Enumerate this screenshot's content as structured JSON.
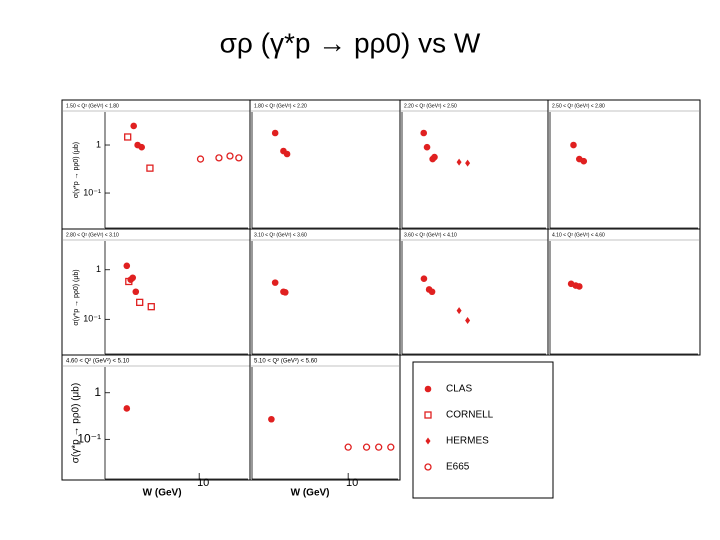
{
  "title": "σρ (γ*p → pρ0) vs W",
  "legend": [
    {
      "name": "CLAS",
      "marker": "filled-circle"
    },
    {
      "name": "CORNELL",
      "marker": "open-square"
    },
    {
      "name": "HERMES",
      "marker": "filled-diamond"
    },
    {
      "name": "E665",
      "marker": "open-circle"
    }
  ],
  "chart_data": [
    {
      "type": "scatter",
      "title": "1.50 < Q² (GeV²) < 1.80",
      "logx": true,
      "logy": true,
      "xlim": [
        1.2,
        30
      ],
      "ylim": [
        0.0187,
        4.87
      ],
      "ylabel": "σ(γ*p → pρ0) (μb)",
      "yticks": [
        1,
        {
          "value": 0.1,
          "label": "10⁻¹"
        }
      ],
      "series": [
        {
          "name": "CLAS",
          "color": "#e02020",
          "marker": "filled-circle",
          "x": [
            2.29,
            2.5,
            2.74
          ],
          "values": [
            2.5,
            1.0,
            0.9
          ]
        },
        {
          "name": "CORNELL",
          "color": "#e02020",
          "marker": "open-square",
          "x": [
            2.0,
            3.3
          ],
          "values": [
            1.47,
            0.33
          ]
        },
        {
          "name": "E665",
          "color": "#e02020",
          "marker": "open-circle",
          "x": [
            10.3,
            15.6,
            20,
            24.4
          ],
          "values": [
            0.51,
            0.54,
            0.59,
            0.54
          ]
        }
      ]
    },
    {
      "type": "scatter",
      "title": "1.80 < Q² (GeV²) < 2.20",
      "logx": true,
      "logy": true,
      "xlim": [
        1.2,
        30
      ],
      "ylim": [
        0.0187,
        4.87
      ],
      "series": [
        {
          "name": "CLAS",
          "color": "#e02020",
          "marker": "filled-circle",
          "x": [
            2.0,
            2.4,
            2.6
          ],
          "values": [
            1.78,
            0.75,
            0.65
          ]
        }
      ]
    },
    {
      "type": "scatter",
      "title": "2.20 < Q² (GeV²) < 2.50",
      "logx": true,
      "logy": true,
      "xlim": [
        1.2,
        30
      ],
      "ylim": [
        0.0187,
        4.87
      ],
      "series": [
        {
          "name": "CLAS",
          "color": "#e02020",
          "marker": "filled-circle",
          "x": [
            1.95,
            2.1,
            2.38,
            2.48
          ],
          "values": [
            1.78,
            0.9,
            0.51,
            0.56
          ]
        },
        {
          "name": "HERMES",
          "color": "#e02020",
          "marker": "filled-diamond",
          "x": [
            4.3,
            5.2
          ],
          "values": [
            0.44,
            0.42
          ]
        }
      ]
    },
    {
      "type": "scatter",
      "title": "2.50 < Q² (GeV²) < 2.80",
      "logx": true,
      "logy": true,
      "xlim": [
        1.2,
        30
      ],
      "ylim": [
        0.0187,
        4.87
      ],
      "series": [
        {
          "name": "CLAS",
          "color": "#e02020",
          "marker": "filled-circle",
          "x": [
            2.0,
            2.27,
            2.5
          ],
          "values": [
            1.0,
            0.51,
            0.46
          ]
        }
      ]
    },
    {
      "type": "scatter",
      "title": "2.80 < Q² (GeV²) < 3.10",
      "logx": true,
      "logy": true,
      "xlim": [
        1.2,
        30
      ],
      "ylim": [
        0.02,
        3.8
      ],
      "ylabel": "σ(γ*p → pρ0) (μb)",
      "yticks": [
        1,
        {
          "value": 0.1,
          "label": "10⁻¹"
        }
      ],
      "series": [
        {
          "name": "CLAS",
          "color": "#e02020",
          "marker": "filled-circle",
          "x": [
            1.96,
            2.14,
            2.24,
            2.4
          ],
          "values": [
            1.2,
            0.63,
            0.69,
            0.36
          ]
        },
        {
          "name": "CORNELL",
          "color": "#e02020",
          "marker": "open-square",
          "x": [
            2.05,
            2.62,
            3.4
          ],
          "values": [
            0.58,
            0.22,
            0.18
          ]
        }
      ]
    },
    {
      "type": "scatter",
      "title": "3.10 < Q² (GeV²) < 3.60",
      "logx": true,
      "logy": true,
      "xlim": [
        1.2,
        30
      ],
      "ylim": [
        0.02,
        3.8
      ],
      "series": [
        {
          "name": "CLAS",
          "color": "#e02020",
          "marker": "filled-circle",
          "x": [
            2.0,
            2.4,
            2.5
          ],
          "values": [
            0.55,
            0.36,
            0.35
          ]
        }
      ]
    },
    {
      "type": "scatter",
      "title": "3.60 < Q² (GeV²) < 4.10",
      "logx": true,
      "logy": true,
      "xlim": [
        1.2,
        30
      ],
      "ylim": [
        0.02,
        3.8
      ],
      "series": [
        {
          "name": "CLAS",
          "color": "#e02020",
          "marker": "filled-circle",
          "x": [
            1.96,
            2.2,
            2.35
          ],
          "values": [
            0.66,
            0.4,
            0.36
          ]
        },
        {
          "name": "HERMES",
          "color": "#e02020",
          "marker": "filled-diamond",
          "x": [
            4.3,
            5.2
          ],
          "values": [
            0.15,
            0.095
          ]
        }
      ]
    },
    {
      "type": "scatter",
      "title": "4.10 < Q² (GeV²) < 4.60",
      "logx": true,
      "logy": true,
      "xlim": [
        1.2,
        30
      ],
      "ylim": [
        0.02,
        3.8
      ],
      "series": [
        {
          "name": "CLAS",
          "color": "#e02020",
          "marker": "filled-circle",
          "x": [
            1.9,
            2.1,
            2.27
          ],
          "values": [
            0.52,
            0.48,
            0.46
          ]
        }
      ]
    },
    {
      "type": "scatter",
      "title": "4.60 < Q² (GeV²) < 5.10",
      "logx": true,
      "logy": true,
      "xlim": [
        1.2,
        30
      ],
      "ylim": [
        0.0141,
        3.57
      ],
      "ylabel": "σ(γ*p → pρ0) (μb)",
      "yticks": [
        1,
        {
          "value": 0.1,
          "label": "10⁻¹"
        }
      ],
      "xlabel": "W (GeV)",
      "xticks": [
        10
      ],
      "series": [
        {
          "name": "CLAS",
          "color": "#e02020",
          "marker": "filled-circle",
          "x": [
            1.96
          ],
          "values": [
            0.46
          ]
        }
      ]
    },
    {
      "type": "scatter",
      "title": "5.10 < Q² (GeV²) < 5.60",
      "logx": true,
      "logy": true,
      "xlim": [
        1.2,
        30
      ],
      "ylim": [
        0.0141,
        3.57
      ],
      "xlabel": "W (GeV)",
      "xticks": [
        10
      ],
      "series": [
        {
          "name": "CLAS",
          "color": "#e02020",
          "marker": "filled-circle",
          "x": [
            1.84
          ],
          "values": [
            0.27
          ]
        },
        {
          "name": "E665",
          "color": "#e02020",
          "marker": "open-circle",
          "x": [
            10,
            15,
            19.6,
            25.6
          ],
          "values": [
            0.068,
            0.068,
            0.068,
            0.068
          ]
        }
      ]
    }
  ]
}
